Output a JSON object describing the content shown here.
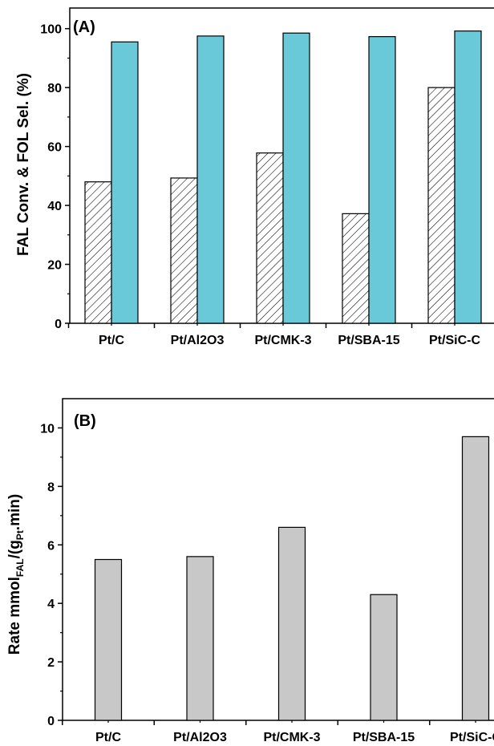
{
  "chart_data": [
    {
      "type": "bar",
      "panel_label": "(A)",
      "ylabel": "FAL Conv. & FOL Sel. (%)",
      "categories": [
        "Pt/C",
        "Pt/Al2O3",
        "Pt/CMK-3",
        "Pt/SBA-15",
        "Pt/SiC-C"
      ],
      "ylim": [
        0,
        107
      ],
      "yticks": [
        0,
        20,
        40,
        60,
        80,
        100
      ],
      "series": [
        {
          "values": [
            48,
            49.3,
            57.8,
            37.2,
            80
          ],
          "fill": "hatched",
          "color": "#ffffff"
        },
        {
          "values": [
            95.5,
            97.5,
            98.5,
            97.3,
            99.2
          ],
          "fill": "solid",
          "color": "#6ac9d9"
        }
      ]
    },
    {
      "type": "bar",
      "panel_label": "(B)",
      "ylabel_main": "Rate mmol",
      "ylabel_sub1": "FAL",
      "ylabel_mid": "/(g",
      "ylabel_sub2": "Pt",
      "ylabel_end": ".min)",
      "categories": [
        "Pt/C",
        "Pt/Al2O3",
        "Pt/CMK-3",
        "Pt/SBA-15",
        "Pt/SiC-C"
      ],
      "ylim": [
        0,
        11
      ],
      "yticks": [
        0,
        2,
        4,
        6,
        8,
        10
      ],
      "series": [
        {
          "values": [
            5.5,
            5.6,
            6.6,
            4.3,
            9.7
          ],
          "fill": "solid",
          "color": "#c8c8c8"
        }
      ]
    }
  ]
}
